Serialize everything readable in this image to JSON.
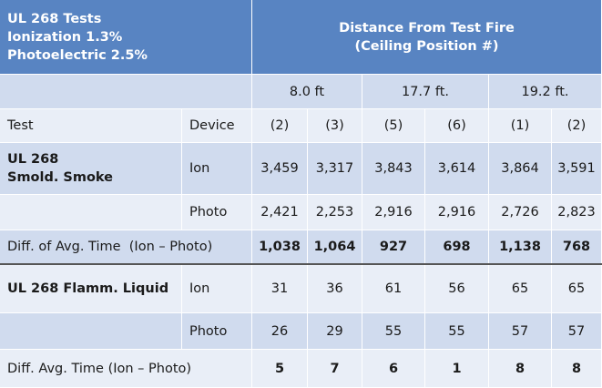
{
  "header": {
    "title_lines": [
      "UL 268 Tests",
      "Ionization 1.3%",
      "Photoelectric 2.5%"
    ],
    "distance_title_lines": [
      "Distance From Test Fire",
      "(Ceiling Position #)"
    ]
  },
  "distances": [
    "8.0 ft",
    "17.7 ft.",
    "19.2 ft."
  ],
  "column_header": {
    "test": "Test",
    "device": "Device",
    "positions": [
      "(2)",
      "(3)",
      "(5)",
      "(6)",
      "(1)",
      "(2)"
    ]
  },
  "groups": [
    {
      "test_lines": [
        "UL 268",
        "Smold. Smoke"
      ],
      "rows": [
        {
          "device": "Ion",
          "values": [
            "3,459",
            "3,317",
            "3,843",
            "3,614",
            "3,864",
            "3,591"
          ]
        },
        {
          "device": "Photo",
          "values": [
            "2,421",
            "2,253",
            "2,916",
            "2,916",
            "2,726",
            "2,823"
          ]
        }
      ],
      "diff": {
        "label": "Diff. of Avg. Time  (Ion – Photo)",
        "values": [
          "1,038",
          "1,064",
          "927",
          "698",
          "1,138",
          "768"
        ]
      }
    },
    {
      "test_lines": [
        "UL 268 Flamm. Liquid"
      ],
      "rows": [
        {
          "device": "Ion",
          "values": [
            "31",
            "36",
            "61",
            "56",
            "65",
            "65"
          ]
        },
        {
          "device": "Photo",
          "values": [
            "26",
            "29",
            "55",
            "55",
            "57",
            "57"
          ]
        }
      ],
      "diff": {
        "label": "Diff. Avg. Time (Ion – Photo)",
        "values": [
          "5",
          "7",
          "6",
          "1",
          "8",
          "8"
        ]
      }
    }
  ]
}
